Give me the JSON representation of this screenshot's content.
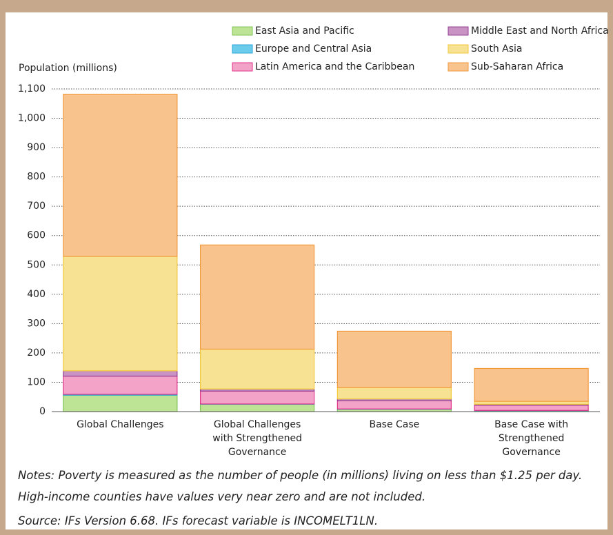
{
  "chart_data": {
    "type": "stacked-bar",
    "y_label": "Population (millions)",
    "categories": [
      "Global Challenges",
      "Global Challenges with Strengthened Governance",
      "Base Case",
      "Base Case with Strengthened Governance"
    ],
    "series": [
      {
        "name": "East Asia and Pacific",
        "color": "#bde394",
        "edge": "#80c454",
        "values": [
          56,
          25,
          8,
          3
        ]
      },
      {
        "name": "Europe and Central Asia",
        "color": "#6cccec",
        "edge": "#2aa6d8",
        "values": [
          3,
          1,
          1,
          1
        ]
      },
      {
        "name": "Latin America and the Caribbean",
        "color": "#f3a2c8",
        "edge": "#e0338a",
        "values": [
          62,
          44,
          28,
          18
        ]
      },
      {
        "name": "Middle East and North Africa",
        "color": "#c993c4",
        "edge": "#943f92",
        "values": [
          18,
          7,
          6,
          3
        ]
      },
      {
        "name": "South Asia",
        "color": "#f6e292",
        "edge": "#f2c93a",
        "values": [
          390,
          136,
          39,
          10
        ]
      },
      {
        "name": "Sub-Saharan Africa",
        "color": "#f9c38d",
        "edge": "#f29a3c",
        "values": [
          553,
          355,
          192,
          112
        ]
      }
    ],
    "ylim": [
      0,
      1100
    ],
    "yticks": [
      0,
      100,
      200,
      300,
      400,
      500,
      600,
      700,
      800,
      900,
      {
        "value": 1000,
        "label": "1,000"
      },
      {
        "value": 1100,
        "label": "1,100"
      }
    ],
    "grid": true,
    "notes": "Notes: Poverty is measured as the number of people (in millions) living on less than $1.25 per day. High-income counties have values very near zero and are not included.",
    "source": "Source: IFs Version 6.68. IFs forecast variable is INCOMELT1LN."
  }
}
